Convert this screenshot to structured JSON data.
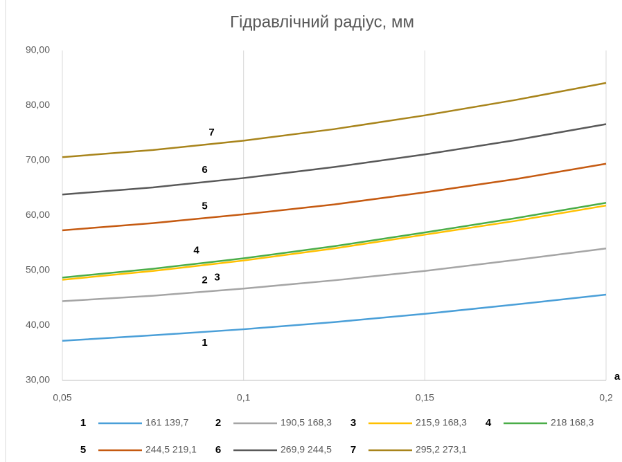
{
  "chart_data": {
    "type": "line",
    "title": "Гідравлічний радіус, мм",
    "x_label": "a",
    "x": [
      0.05,
      0.075,
      0.1,
      0.125,
      0.15,
      0.175,
      0.2
    ],
    "xlim": [
      0.05,
      0.2
    ],
    "xticks": [
      {
        "value": 0.05,
        "label": "0,05"
      },
      {
        "value": 0.1,
        "label": "0,1"
      },
      {
        "value": 0.15,
        "label": "0,15"
      },
      {
        "value": 0.2,
        "label": "0,2"
      }
    ],
    "ylim": [
      30,
      90
    ],
    "yticks": [
      {
        "value": 30,
        "label": "30,00"
      },
      {
        "value": 40,
        "label": "40,00"
      },
      {
        "value": 50,
        "label": "50,00"
      },
      {
        "value": 60,
        "label": "60,00"
      },
      {
        "value": 70,
        "label": "70,00"
      },
      {
        "value": 80,
        "label": "80,00"
      },
      {
        "value": 90,
        "label": "90,00"
      }
    ],
    "grid": "x",
    "series": [
      {
        "label": "1",
        "name": "161 139,7",
        "color": "#4a9fd8",
        "values": [
          37.2,
          38.2,
          39.3,
          40.6,
          42.1,
          43.8,
          45.6
        ]
      },
      {
        "label": "2",
        "name": "190,5 168,3",
        "color": "#a5a5a5",
        "values": [
          44.4,
          45.4,
          46.7,
          48.2,
          49.9,
          51.9,
          54.0
        ]
      },
      {
        "label": "3",
        "name": "215,9 168,3",
        "color": "#ffc000",
        "values": [
          48.3,
          49.9,
          51.8,
          54.0,
          56.5,
          59.0,
          61.8
        ]
      },
      {
        "label": "4",
        "name": "218 168,3",
        "color": "#4aad48",
        "values": [
          48.7,
          50.3,
          52.2,
          54.4,
          56.9,
          59.5,
          62.3
        ]
      },
      {
        "label": "5",
        "name": "244,5 219,1",
        "color": "#c55a11",
        "values": [
          57.3,
          58.6,
          60.2,
          62.0,
          64.2,
          66.6,
          69.4
        ]
      },
      {
        "label": "6",
        "name": "269,9 244,5",
        "color": "#595959",
        "values": [
          63.8,
          65.1,
          66.8,
          68.8,
          71.1,
          73.7,
          76.6
        ]
      },
      {
        "label": "7",
        "name": "295,2 273,1",
        "color": "#a8841b",
        "values": [
          70.6,
          71.9,
          73.6,
          75.7,
          78.2,
          81.0,
          84.1
        ]
      }
    ]
  }
}
